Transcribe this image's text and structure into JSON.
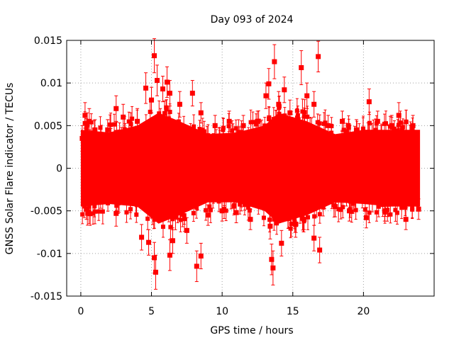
{
  "chart_data": {
    "type": "scatter",
    "title": "Day 093 of 2024",
    "xlabel": "GPS time / hours",
    "ylabel": "GNSS Solar Flare indicator / TECUs",
    "xlim": [
      -1,
      25
    ],
    "ylim": [
      -0.015,
      0.015
    ],
    "xticks": [
      0,
      5,
      10,
      15,
      20
    ],
    "xtick_labels": [
      "0",
      "5",
      "10",
      "15",
      "20"
    ],
    "yticks": [
      -0.015,
      -0.01,
      -0.005,
      0,
      0.005,
      0.01,
      0.015
    ],
    "ytick_labels": [
      "-0.015",
      "-0.01",
      "-0.005",
      "0",
      "0.005",
      "0.01",
      "0.015"
    ],
    "grid": true,
    "series": [
      {
        "name": "solar flare indicator",
        "color": "#ff0000",
        "marker": "square",
        "error_bars": true,
        "x_range": [
          0,
          24
        ],
        "points": [
          {
            "x": 0.1,
            "y": 0.0035,
            "err": 0.0015
          },
          {
            "x": 0.3,
            "y": 0.0062,
            "err": 0.0015
          },
          {
            "x": 0.4,
            "y": -0.0048,
            "err": 0.0012
          },
          {
            "x": 0.6,
            "y": 0.0055,
            "err": 0.0015
          },
          {
            "x": 1.0,
            "y": 0.0045,
            "err": 0.0012
          },
          {
            "x": 1.4,
            "y": -0.0035,
            "err": 0.0012
          },
          {
            "x": 1.9,
            "y": 0.0045,
            "err": 0.0012
          },
          {
            "x": 2.5,
            "y": 0.007,
            "err": 0.0015
          },
          {
            "x": 2.5,
            "y": -0.0053,
            "err": 0.0015
          },
          {
            "x": 3.0,
            "y": 0.006,
            "err": 0.0015
          },
          {
            "x": 3.5,
            "y": -0.004,
            "err": 0.0012
          },
          {
            "x": 4.0,
            "y": 0.0055,
            "err": 0.0015
          },
          {
            "x": 4.3,
            "y": -0.0081,
            "err": 0.0015
          },
          {
            "x": 4.6,
            "y": 0.0094,
            "err": 0.0018
          },
          {
            "x": 4.8,
            "y": -0.0087,
            "err": 0.0015
          },
          {
            "x": 5.0,
            "y": 0.008,
            "err": 0.0015
          },
          {
            "x": 5.2,
            "y": 0.0132,
            "err": 0.002
          },
          {
            "x": 5.2,
            "y": -0.0105,
            "err": 0.0018
          },
          {
            "x": 5.3,
            "y": -0.0122,
            "err": 0.002
          },
          {
            "x": 5.4,
            "y": 0.0103,
            "err": 0.0018
          },
          {
            "x": 5.8,
            "y": 0.0093,
            "err": 0.0015
          },
          {
            "x": 6.1,
            "y": 0.0101,
            "err": 0.0018
          },
          {
            "x": 6.3,
            "y": 0.0088,
            "err": 0.0015
          },
          {
            "x": 6.3,
            "y": -0.0102,
            "err": 0.0018
          },
          {
            "x": 6.5,
            "y": -0.0085,
            "err": 0.0015
          },
          {
            "x": 7.0,
            "y": 0.0075,
            "err": 0.0015
          },
          {
            "x": 7.5,
            "y": -0.0073,
            "err": 0.0015
          },
          {
            "x": 7.9,
            "y": 0.0088,
            "err": 0.0015
          },
          {
            "x": 8.2,
            "y": -0.0115,
            "err": 0.0018
          },
          {
            "x": 8.5,
            "y": -0.0103,
            "err": 0.0015
          },
          {
            "x": 8.5,
            "y": 0.0065,
            "err": 0.0012
          },
          {
            "x": 9.0,
            "y": -0.0055,
            "err": 0.0012
          },
          {
            "x": 9.5,
            "y": 0.005,
            "err": 0.0012
          },
          {
            "x": 10.0,
            "y": -0.005,
            "err": 0.0012
          },
          {
            "x": 10.5,
            "y": 0.0055,
            "err": 0.0012
          },
          {
            "x": 11.0,
            "y": -0.0052,
            "err": 0.0012
          },
          {
            "x": 11.5,
            "y": 0.005,
            "err": 0.0012
          },
          {
            "x": 12.0,
            "y": -0.006,
            "err": 0.0012
          },
          {
            "x": 12.5,
            "y": 0.0055,
            "err": 0.0012
          },
          {
            "x": 13.1,
            "y": 0.0085,
            "err": 0.0015
          },
          {
            "x": 13.3,
            "y": 0.0099,
            "err": 0.0018
          },
          {
            "x": 13.4,
            "y": -0.0068,
            "err": 0.0015
          },
          {
            "x": 13.5,
            "y": -0.0107,
            "err": 0.0018
          },
          {
            "x": 13.6,
            "y": -0.0117,
            "err": 0.002
          },
          {
            "x": 13.7,
            "y": 0.0125,
            "err": 0.002
          },
          {
            "x": 14.0,
            "y": 0.0075,
            "err": 0.0015
          },
          {
            "x": 14.2,
            "y": -0.0088,
            "err": 0.0015
          },
          {
            "x": 14.4,
            "y": 0.0092,
            "err": 0.0015
          },
          {
            "x": 14.8,
            "y": 0.0065,
            "err": 0.0015
          },
          {
            "x": 15.2,
            "y": -0.0066,
            "err": 0.0015
          },
          {
            "x": 15.6,
            "y": 0.0118,
            "err": 0.002
          },
          {
            "x": 15.8,
            "y": -0.006,
            "err": 0.0012
          },
          {
            "x": 16.0,
            "y": 0.0085,
            "err": 0.0015
          },
          {
            "x": 16.5,
            "y": 0.0075,
            "err": 0.0015
          },
          {
            "x": 16.5,
            "y": -0.0082,
            "err": 0.0015
          },
          {
            "x": 16.8,
            "y": 0.0131,
            "err": 0.0018
          },
          {
            "x": 16.9,
            "y": -0.0096,
            "err": 0.0015
          },
          {
            "x": 17.5,
            "y": 0.005,
            "err": 0.0012
          },
          {
            "x": 18.0,
            "y": -0.0045,
            "err": 0.0012
          },
          {
            "x": 18.5,
            "y": 0.0055,
            "err": 0.0012
          },
          {
            "x": 19.0,
            "y": -0.005,
            "err": 0.0012
          },
          {
            "x": 19.5,
            "y": 0.0045,
            "err": 0.0012
          },
          {
            "x": 20.2,
            "y": -0.0058,
            "err": 0.0012
          },
          {
            "x": 20.4,
            "y": 0.0078,
            "err": 0.0015
          },
          {
            "x": 21.0,
            "y": 0.0055,
            "err": 0.0012
          },
          {
            "x": 21.5,
            "y": -0.005,
            "err": 0.0012
          },
          {
            "x": 22.0,
            "y": 0.005,
            "err": 0.0012
          },
          {
            "x": 22.5,
            "y": 0.0062,
            "err": 0.0015
          },
          {
            "x": 23.0,
            "y": -0.006,
            "err": 0.0012
          },
          {
            "x": 23.5,
            "y": 0.005,
            "err": 0.0012
          },
          {
            "x": 23.9,
            "y": -0.0048,
            "err": 0.0012
          }
        ],
        "bulk_band": [
          {
            "x": 0,
            "lo": -0.0045,
            "hi": 0.0045
          },
          {
            "x": 2,
            "lo": -0.0042,
            "hi": 0.0042
          },
          {
            "x": 4,
            "lo": -0.0045,
            "hi": 0.005
          },
          {
            "x": 5.5,
            "lo": -0.0065,
            "hi": 0.0065
          },
          {
            "x": 7,
            "lo": -0.0055,
            "hi": 0.0055
          },
          {
            "x": 9,
            "lo": -0.004,
            "hi": 0.004
          },
          {
            "x": 11,
            "lo": -0.004,
            "hi": 0.0042
          },
          {
            "x": 13,
            "lo": -0.005,
            "hi": 0.005
          },
          {
            "x": 14,
            "lo": -0.0065,
            "hi": 0.0065
          },
          {
            "x": 16,
            "lo": -0.0055,
            "hi": 0.0055
          },
          {
            "x": 18,
            "lo": -0.004,
            "hi": 0.004
          },
          {
            "x": 20,
            "lo": -0.0042,
            "hi": 0.0045
          },
          {
            "x": 22,
            "lo": -0.0045,
            "hi": 0.0045
          },
          {
            "x": 24,
            "lo": -0.0045,
            "hi": 0.0045
          }
        ]
      }
    ]
  }
}
